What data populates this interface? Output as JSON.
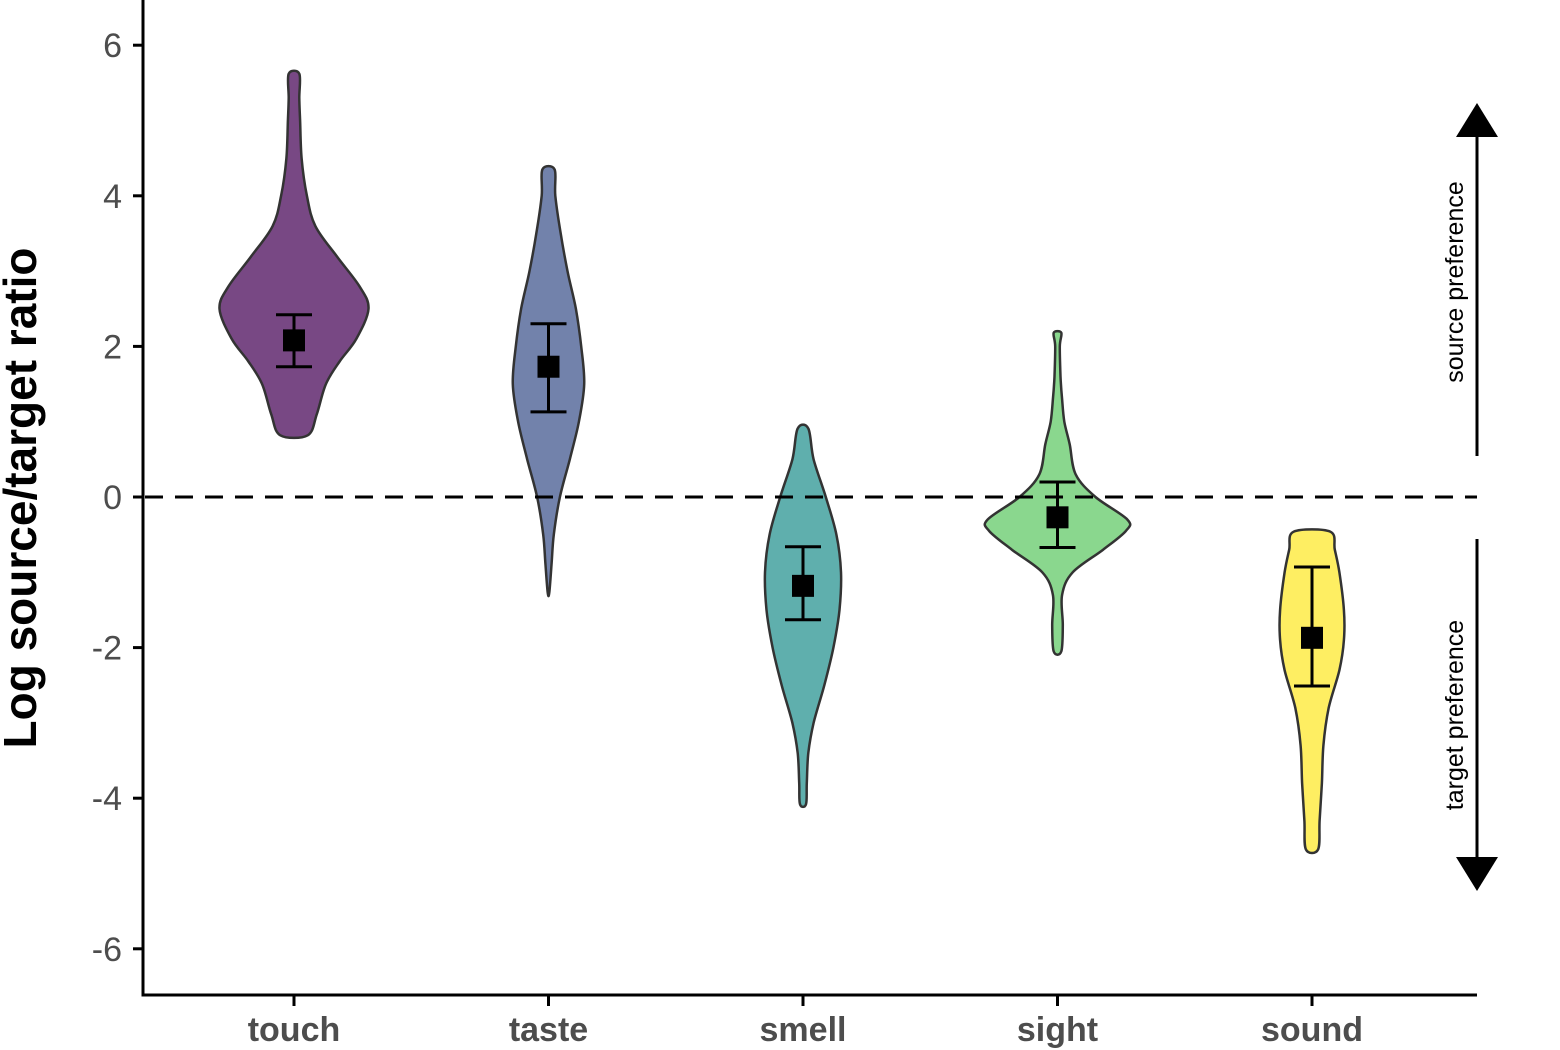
{
  "chart_data": {
    "type": "violin",
    "ylabel": "Log source/target ratio",
    "xlabel": "",
    "ylim": [
      -6.6,
      6.6
    ],
    "yticks": [
      -6,
      -4,
      -2,
      0,
      2,
      4,
      6
    ],
    "ytick_labels": [
      "-6",
      "-4",
      "-2",
      "0",
      "2",
      "4",
      "6"
    ],
    "categories": [
      "touch",
      "taste",
      "smell",
      "sight",
      "sound"
    ],
    "reference_line": 0,
    "series": [
      {
        "category": "touch",
        "color": "#440154",
        "mean": 2.08,
        "ci_low": 1.73,
        "ci_high": 2.42,
        "min": 0.82,
        "max": 5.62,
        "profile": [
          [
            0.82,
            0.18
          ],
          [
            1.1,
            0.3
          ],
          [
            1.5,
            0.42
          ],
          [
            1.8,
            0.6
          ],
          [
            2.1,
            0.82
          ],
          [
            2.5,
            0.98
          ],
          [
            2.8,
            0.86
          ],
          [
            3.2,
            0.56
          ],
          [
            3.6,
            0.28
          ],
          [
            4.0,
            0.17
          ],
          [
            4.5,
            0.1
          ],
          [
            5.0,
            0.08
          ],
          [
            5.3,
            0.07
          ],
          [
            5.62,
            0.07
          ]
        ]
      },
      {
        "category": "taste",
        "color": "#3b528b",
        "mean": 1.73,
        "ci_low": 1.13,
        "ci_high": 2.3,
        "min": -1.27,
        "max": 4.35,
        "profile": [
          [
            -1.27,
            0.01
          ],
          [
            -0.9,
            0.04
          ],
          [
            -0.5,
            0.07
          ],
          [
            0.0,
            0.15
          ],
          [
            0.5,
            0.28
          ],
          [
            1.0,
            0.4
          ],
          [
            1.5,
            0.47
          ],
          [
            2.0,
            0.43
          ],
          [
            2.5,
            0.36
          ],
          [
            3.0,
            0.25
          ],
          [
            3.5,
            0.16
          ],
          [
            4.0,
            0.09
          ],
          [
            4.35,
            0.08
          ]
        ]
      },
      {
        "category": "smell",
        "color": "#21908d",
        "mean": -1.18,
        "ci_low": -1.63,
        "ci_high": -0.66,
        "min": -4.08,
        "max": 0.91,
        "profile": [
          [
            -4.08,
            0.04
          ],
          [
            -3.8,
            0.05
          ],
          [
            -3.4,
            0.07
          ],
          [
            -3.0,
            0.14
          ],
          [
            -2.5,
            0.28
          ],
          [
            -2.0,
            0.4
          ],
          [
            -1.5,
            0.48
          ],
          [
            -1.0,
            0.5
          ],
          [
            -0.5,
            0.44
          ],
          [
            0.0,
            0.3
          ],
          [
            0.5,
            0.14
          ],
          [
            0.91,
            0.07
          ]
        ]
      },
      {
        "category": "sight",
        "color": "#5dc863",
        "mean": -0.27,
        "ci_low": -0.67,
        "ci_high": 0.2,
        "min": -2.05,
        "max": 2.18,
        "profile": [
          [
            -2.05,
            0.05
          ],
          [
            -1.7,
            0.07
          ],
          [
            -1.3,
            0.06
          ],
          [
            -1.0,
            0.2
          ],
          [
            -0.7,
            0.6
          ],
          [
            -0.45,
            0.9
          ],
          [
            -0.3,
            0.92
          ],
          [
            0.0,
            0.5
          ],
          [
            0.3,
            0.24
          ],
          [
            0.7,
            0.16
          ],
          [
            1.0,
            0.09
          ],
          [
            1.3,
            0.06
          ],
          [
            1.6,
            0.04
          ],
          [
            2.0,
            0.03
          ],
          [
            2.18,
            0.05
          ]
        ]
      },
      {
        "category": "sound",
        "color": "#fde725",
        "mean": -1.87,
        "ci_low": -2.51,
        "ci_high": -0.93,
        "min": -4.68,
        "max": -0.46,
        "profile": [
          [
            -4.68,
            0.08
          ],
          [
            -4.3,
            0.1
          ],
          [
            -3.8,
            0.13
          ],
          [
            -3.3,
            0.15
          ],
          [
            -2.8,
            0.22
          ],
          [
            -2.3,
            0.36
          ],
          [
            -1.9,
            0.42
          ],
          [
            -1.5,
            0.42
          ],
          [
            -1.0,
            0.36
          ],
          [
            -0.7,
            0.3
          ],
          [
            -0.46,
            0.24
          ]
        ]
      }
    ],
    "annotations": {
      "up_label": "source preference",
      "down_label": "target preference"
    }
  }
}
